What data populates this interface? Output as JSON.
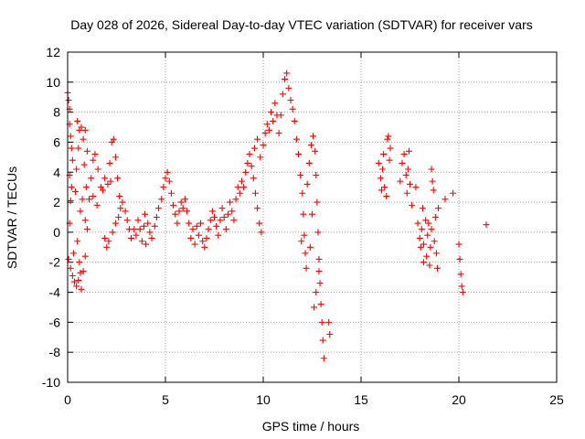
{
  "chart_data": {
    "type": "scatter",
    "title": "Day 028 of 2026, Sidereal Day-to-day VTEC variation (SDTVAR) for receiver vars",
    "xlabel": "GPS time / hours",
    "ylabel": "SDTVAR / TECUs",
    "xlim": [
      0,
      25
    ],
    "ylim": [
      -10,
      12
    ],
    "xticks": [
      0,
      5,
      10,
      15,
      20,
      25
    ],
    "yticks": [
      -10,
      -8,
      -6,
      -4,
      -2,
      0,
      2,
      4,
      6,
      8,
      10,
      12
    ],
    "grid": true,
    "marker": "+",
    "colors": {
      "series": "#ff0000",
      "grid": "#a0a0a0",
      "axis": "#000000"
    },
    "series": [
      {
        "name": "SDTVAR",
        "points": [
          [
            0.0,
            9.3
          ],
          [
            0.05,
            8.8
          ],
          [
            0.1,
            8.2
          ],
          [
            0.1,
            7.2
          ],
          [
            0.15,
            6.4
          ],
          [
            0.2,
            5.6
          ],
          [
            0.25,
            4.8
          ],
          [
            0.1,
            3.8
          ],
          [
            0.2,
            3.0
          ],
          [
            0.15,
            2.1
          ],
          [
            0.1,
            0.6
          ],
          [
            0.05,
            -1.8
          ],
          [
            0.15,
            -2.4
          ],
          [
            0.25,
            -2.9
          ],
          [
            0.35,
            -3.3
          ],
          [
            0.45,
            -3.6
          ],
          [
            0.55,
            -3.2
          ],
          [
            0.65,
            -2.7
          ],
          [
            0.3,
            -1.4
          ],
          [
            0.5,
            -0.6
          ],
          [
            0.4,
            2.7
          ],
          [
            0.45,
            4.2
          ],
          [
            0.55,
            5.6
          ],
          [
            0.6,
            6.8
          ],
          [
            0.5,
            7.4
          ],
          [
            0.7,
            7.0
          ],
          [
            0.8,
            6.2
          ],
          [
            0.9,
            6.8
          ],
          [
            1.0,
            5.4
          ],
          [
            0.85,
            4.5
          ],
          [
            0.95,
            3.0
          ],
          [
            0.75,
            2.2
          ],
          [
            0.65,
            1.4
          ],
          [
            0.9,
            0.8
          ],
          [
            1.1,
            2.2
          ],
          [
            1.2,
            3.6
          ],
          [
            1.3,
            4.8
          ],
          [
            1.4,
            5.2
          ],
          [
            1.55,
            4.2
          ],
          [
            1.7,
            3.0
          ],
          [
            0.6,
            -2.0
          ],
          [
            0.7,
            -3.8
          ],
          [
            0.8,
            -2.6
          ],
          [
            0.9,
            -1.6
          ],
          [
            1.0,
            0.2
          ],
          [
            1.3,
            2.4
          ],
          [
            1.5,
            1.8
          ],
          [
            1.8,
            2.8
          ],
          [
            1.9,
            3.6
          ],
          [
            2.05,
            3.2
          ],
          [
            2.15,
            4.6
          ],
          [
            2.25,
            6.0
          ],
          [
            2.35,
            6.2
          ],
          [
            2.45,
            5.0
          ],
          [
            2.55,
            3.6
          ],
          [
            2.65,
            2.4
          ],
          [
            2.2,
            3.4
          ],
          [
            1.9,
            -0.4
          ],
          [
            2.0,
            -1.0
          ],
          [
            2.1,
            -0.6
          ],
          [
            2.3,
            0.0
          ],
          [
            2.45,
            0.6
          ],
          [
            2.6,
            1.0
          ],
          [
            2.7,
            1.6
          ],
          [
            2.8,
            2.0
          ],
          [
            2.95,
            1.4
          ],
          [
            3.05,
            0.8
          ],
          [
            3.15,
            0.2
          ],
          [
            3.25,
            -0.4
          ],
          [
            3.4,
            0.2
          ],
          [
            3.5,
            -0.2
          ],
          [
            3.6,
            0.8
          ],
          [
            3.7,
            0.2
          ],
          [
            3.8,
            -0.6
          ],
          [
            3.9,
            0.4
          ],
          [
            4.0,
            -0.8
          ],
          [
            3.95,
            1.2
          ],
          [
            4.1,
            0.6
          ],
          [
            4.2,
            0.0
          ],
          [
            4.3,
            -0.4
          ],
          [
            4.45,
            0.4
          ],
          [
            4.55,
            1.0
          ],
          [
            4.65,
            1.6
          ],
          [
            4.8,
            2.2
          ],
          [
            4.9,
            3.0
          ],
          [
            5.0,
            3.6
          ],
          [
            5.1,
            4.0
          ],
          [
            5.2,
            3.4
          ],
          [
            5.3,
            2.6
          ],
          [
            5.4,
            1.8
          ],
          [
            5.5,
            1.2
          ],
          [
            5.6,
            0.6
          ],
          [
            5.7,
            1.4
          ],
          [
            5.8,
            2.0
          ],
          [
            5.9,
            1.6
          ],
          [
            6.0,
            2.2
          ],
          [
            6.1,
            1.4
          ],
          [
            6.2,
            0.6
          ],
          [
            6.3,
            -0.4
          ],
          [
            6.4,
            0.2
          ],
          [
            6.5,
            -0.8
          ],
          [
            6.6,
            0.4
          ],
          [
            6.7,
            -0.2
          ],
          [
            6.8,
            0.6
          ],
          [
            6.9,
            -0.6
          ],
          [
            7.0,
            -1.0
          ],
          [
            7.1,
            -0.4
          ],
          [
            7.2,
            0.2
          ],
          [
            7.3,
            0.8
          ],
          [
            7.4,
            1.4
          ],
          [
            7.5,
            1.0
          ],
          [
            7.6,
            0.4
          ],
          [
            7.7,
            -0.2
          ],
          [
            7.8,
            0.8
          ],
          [
            7.9,
            1.6
          ],
          [
            8.0,
            1.0
          ],
          [
            8.1,
            0.2
          ],
          [
            8.2,
            1.2
          ],
          [
            8.3,
            2.0
          ],
          [
            8.4,
            1.4
          ],
          [
            8.5,
            0.8
          ],
          [
            8.6,
            2.2
          ],
          [
            8.7,
            3.0
          ],
          [
            8.8,
            2.6
          ],
          [
            8.9,
            3.4
          ],
          [
            9.0,
            3.0
          ],
          [
            9.1,
            4.0
          ],
          [
            9.2,
            4.6
          ],
          [
            9.3,
            5.2
          ],
          [
            9.4,
            4.4
          ],
          [
            9.5,
            3.6
          ],
          [
            9.6,
            2.6
          ],
          [
            9.7,
            1.6
          ],
          [
            9.8,
            0.6
          ],
          [
            9.9,
            0.0
          ],
          [
            9.55,
            5.6
          ],
          [
            9.7,
            6.2
          ],
          [
            9.85,
            5.0
          ],
          [
            10.0,
            5.8
          ],
          [
            10.1,
            6.6
          ],
          [
            10.2,
            7.2
          ],
          [
            10.3,
            6.8
          ],
          [
            10.4,
            8.0
          ],
          [
            10.5,
            7.4
          ],
          [
            10.6,
            8.6
          ],
          [
            10.7,
            7.8
          ],
          [
            10.8,
            6.6
          ],
          [
            10.9,
            7.8
          ],
          [
            11.0,
            9.2
          ],
          [
            11.1,
            10.2
          ],
          [
            11.2,
            10.6
          ],
          [
            11.3,
            9.6
          ],
          [
            11.4,
            8.8
          ],
          [
            11.5,
            8.2
          ],
          [
            11.6,
            7.4
          ],
          [
            11.7,
            6.2
          ],
          [
            11.8,
            5.2
          ],
          [
            11.9,
            3.8
          ],
          [
            12.0,
            2.6
          ],
          [
            12.05,
            1.2
          ],
          [
            12.1,
            -0.2
          ],
          [
            12.15,
            -1.4
          ],
          [
            12.2,
            -2.4
          ],
          [
            11.95,
            -0.6
          ],
          [
            12.25,
            3.2
          ],
          [
            12.35,
            4.6
          ],
          [
            12.45,
            5.8
          ],
          [
            12.55,
            6.4
          ],
          [
            12.65,
            5.4
          ],
          [
            12.7,
            3.8
          ],
          [
            12.75,
            2.0
          ],
          [
            12.8,
            0.0
          ],
          [
            12.85,
            -1.8
          ],
          [
            12.9,
            -3.4
          ],
          [
            12.95,
            -4.8
          ],
          [
            13.0,
            -6.0
          ],
          [
            13.05,
            -7.2
          ],
          [
            13.1,
            -8.4
          ],
          [
            12.6,
            -5.0
          ],
          [
            12.7,
            -4.0
          ],
          [
            12.85,
            -2.6
          ],
          [
            13.35,
            -6.0
          ],
          [
            13.4,
            -6.8
          ],
          [
            12.5,
            1.2
          ],
          [
            12.4,
            -1.0
          ],
          [
            15.9,
            4.6
          ],
          [
            16.0,
            3.6
          ],
          [
            16.05,
            2.8
          ],
          [
            16.1,
            4.2
          ],
          [
            16.15,
            5.2
          ],
          [
            16.2,
            3.0
          ],
          [
            16.3,
            2.4
          ],
          [
            16.35,
            6.2
          ],
          [
            16.4,
            6.4
          ],
          [
            16.45,
            4.8
          ],
          [
            16.5,
            5.6
          ],
          [
            17.0,
            3.4
          ],
          [
            17.1,
            4.6
          ],
          [
            17.2,
            5.2
          ],
          [
            17.3,
            3.8
          ],
          [
            17.35,
            2.6
          ],
          [
            17.4,
            4.2
          ],
          [
            17.45,
            5.4
          ],
          [
            17.5,
            3.2
          ],
          [
            17.6,
            1.8
          ],
          [
            17.8,
            3.0
          ],
          [
            17.9,
            0.6
          ],
          [
            18.0,
            -0.4
          ],
          [
            18.05,
            -1.0
          ],
          [
            18.1,
            0.2
          ],
          [
            18.15,
            1.6
          ],
          [
            18.2,
            -0.8
          ],
          [
            18.3,
            0.8
          ],
          [
            18.35,
            -1.6
          ],
          [
            18.4,
            -0.2
          ],
          [
            18.45,
            0.6
          ],
          [
            18.5,
            -2.2
          ],
          [
            18.55,
            -1.0
          ],
          [
            18.6,
            0.2
          ],
          [
            18.65,
            3.4
          ],
          [
            18.7,
            2.8
          ],
          [
            18.75,
            -0.6
          ],
          [
            18.8,
            1.0
          ],
          [
            18.85,
            -1.4
          ],
          [
            18.9,
            -2.4
          ],
          [
            18.95,
            1.6
          ],
          [
            18.6,
            4.2
          ],
          [
            18.2,
            -2.0
          ],
          [
            19.3,
            2.2
          ],
          [
            19.7,
            2.6
          ],
          [
            20.0,
            -0.8
          ],
          [
            20.05,
            -1.8
          ],
          [
            20.1,
            -2.8
          ],
          [
            20.15,
            -3.6
          ],
          [
            20.2,
            -4.0
          ],
          [
            21.4,
            0.5
          ]
        ]
      }
    ]
  }
}
